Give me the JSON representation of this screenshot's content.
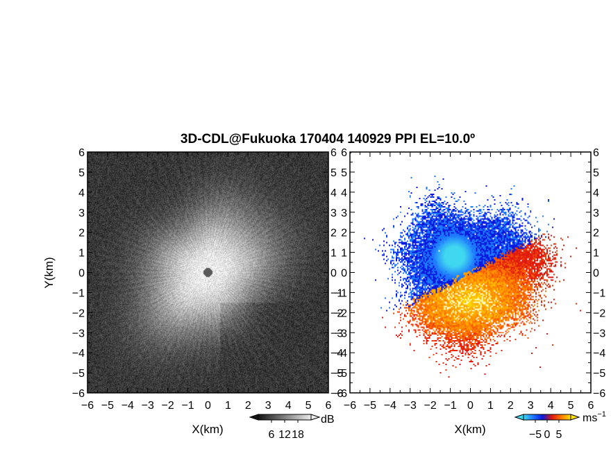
{
  "chart_data": [
    {
      "type": "heatmap",
      "panel": "left",
      "variable": "intensity",
      "title": "3D-CDL@Fukuoka 170404 140929 PPI EL=10.0º",
      "xlabel": "X(km)",
      "ylabel": "Y(km)",
      "xlim": [
        -6,
        6
      ],
      "ylim": [
        -6,
        6
      ],
      "x_ticks": [
        "−6",
        "−5",
        "−4",
        "−3",
        "−2",
        "−1",
        "0",
        "1",
        "2",
        "3",
        "4",
        "5",
        "6"
      ],
      "y_ticks": [
        "6",
        "5",
        "4",
        "3",
        "2",
        "1",
        "0",
        "−1",
        "−2",
        "−3",
        "−4",
        "−5",
        "−6"
      ],
      "colormap": "grayscale",
      "colorbar": {
        "unit": "dB",
        "ticks": [
          "6",
          "12",
          "18"
        ],
        "range": [
          0,
          24
        ]
      }
    },
    {
      "type": "heatmap",
      "panel": "right",
      "variable": "radial velocity",
      "xlabel": "X(km)",
      "xlim": [
        -6,
        6
      ],
      "ylim": [
        -6,
        6
      ],
      "x_ticks": [
        "−6",
        "−5",
        "−4",
        "−3",
        "−2",
        "−1",
        "0",
        "1",
        "2",
        "3",
        "4",
        "5",
        "6"
      ],
      "y_ticks": [
        "6",
        "5",
        "4",
        "3",
        "2",
        "1",
        "0",
        "−1",
        "−2",
        "−3",
        "−4",
        "−5",
        "−6"
      ],
      "colormap": "diverging blue-red-yellow",
      "colorbar": {
        "unit": "ms",
        "unit_exponent": "−1",
        "ticks": [
          "−5",
          "0",
          "5"
        ],
        "range": [
          -10,
          10
        ]
      }
    }
  ],
  "colors": {
    "neg_dark": "#0a1adc",
    "neg_mid": "#1e78ff",
    "neg_light": "#40d8f0",
    "pos_red": "#e01810",
    "pos_orange": "#ff7a00",
    "pos_yellow": "#ffe000"
  }
}
